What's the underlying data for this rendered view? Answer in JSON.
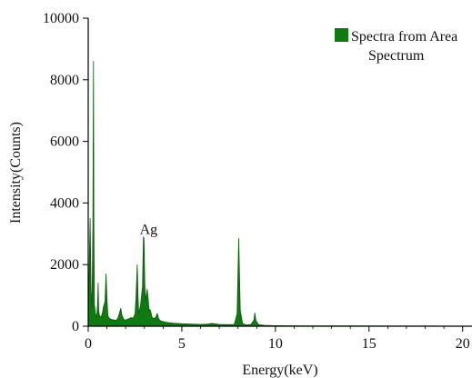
{
  "chart_data": {
    "type": "area",
    "xlabel": "Energy(keV)",
    "ylabel": "Intensity(Counts)",
    "xlim": [
      0,
      20.5
    ],
    "ylim": [
      0,
      10000
    ],
    "x_ticks": [
      0,
      5,
      10,
      15,
      20
    ],
    "y_ticks": [
      0,
      2000,
      4000,
      6000,
      8000,
      10000
    ],
    "x_tick_labels": [
      "0",
      "5",
      "10",
      "15",
      "20"
    ],
    "y_tick_labels": [
      "0",
      "2000",
      "4000",
      "6000",
      "8000",
      "10000"
    ],
    "legend": {
      "placement": "top-right",
      "label_line1": "Spectra from Area",
      "label_line2": "Spectrum"
    },
    "colors": {
      "fill": "#0f7a0f",
      "stroke": "#0a5a0a"
    },
    "annotations": [
      {
        "text": "Ag",
        "x": 2.98,
        "y": 2850
      }
    ],
    "series": [
      {
        "x": [
          0.0,
          0.05,
          0.1,
          0.15,
          0.2,
          0.25,
          0.28,
          0.3,
          0.33,
          0.37,
          0.4,
          0.45,
          0.5,
          0.53,
          0.56,
          0.6,
          0.65,
          0.7,
          0.75,
          0.82,
          0.9,
          0.95,
          1.0,
          1.05,
          1.1,
          1.15,
          1.2,
          1.3,
          1.4,
          1.5,
          1.6,
          1.7,
          1.74,
          1.8,
          1.9,
          2.0,
          2.1,
          2.2,
          2.3,
          2.4,
          2.5,
          2.55,
          2.62,
          2.66,
          2.7,
          2.8,
          2.9,
          2.95,
          2.98,
          3.02,
          3.06,
          3.1,
          3.15,
          3.2,
          3.25,
          3.3,
          3.35,
          3.4,
          3.5,
          3.6,
          3.69,
          3.75,
          3.85,
          4.0,
          4.2,
          4.5,
          5.0,
          5.5,
          6.0,
          6.4,
          6.6,
          7.0,
          7.4,
          7.8,
          7.95,
          8.04,
          8.12,
          8.25,
          8.45,
          8.7,
          8.85,
          8.9,
          8.96,
          9.1,
          9.4,
          9.8,
          10.5,
          12.0,
          14.0,
          16.0,
          18.0,
          20.5
        ],
        "y": [
          0,
          1800,
          3500,
          1200,
          600,
          3200,
          8600,
          3500,
          700,
          500,
          380,
          300,
          700,
          1400,
          500,
          350,
          300,
          320,
          400,
          650,
          800,
          1700,
          900,
          350,
          280,
          250,
          230,
          210,
          200,
          190,
          280,
          500,
          580,
          350,
          220,
          200,
          230,
          250,
          280,
          260,
          400,
          900,
          2000,
          950,
          400,
          700,
          1300,
          2900,
          2850,
          1400,
          800,
          1000,
          1200,
          900,
          500,
          550,
          450,
          300,
          250,
          280,
          420,
          250,
          180,
          150,
          120,
          100,
          80,
          70,
          60,
          70,
          90,
          60,
          50,
          60,
          400,
          2850,
          500,
          80,
          40,
          60,
          200,
          430,
          180,
          50,
          30,
          20,
          15,
          10,
          8,
          6,
          5,
          0
        ]
      }
    ]
  }
}
